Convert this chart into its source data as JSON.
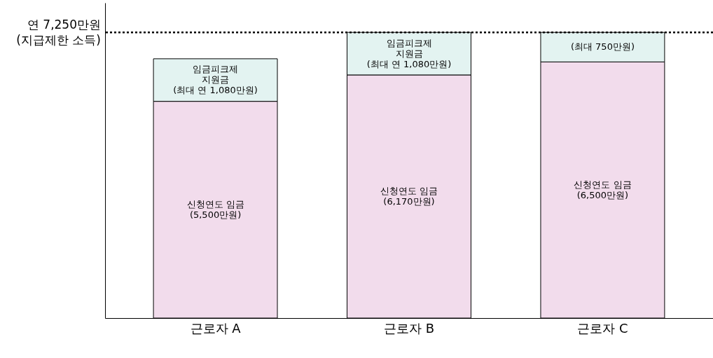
{
  "chart_data": {
    "type": "bar",
    "stacked": true,
    "categories": [
      "근로자 A",
      "근로자 B",
      "근로자 C"
    ],
    "ylim": [
      0,
      8000
    ],
    "tick_labels": "x",
    "series": [
      {
        "color": "#f2dcec",
        "values": [
          5500,
          6170,
          6500
        ],
        "value_labels": [
          "신청연도 임금\n(5,500만원)",
          "신청연도 임금\n(6,170만원)",
          "신청연도 임금\n(6,500만원)"
        ]
      },
      {
        "color": "#e3f3f1",
        "values": [
          1080,
          1080,
          750
        ],
        "value_labels": [
          "임금피크제\n지원금\n(최대 연 1,080만원)",
          "임금피크제\n지원금\n(최대 연 1,080만원)",
          "(최대 750만원)"
        ]
      }
    ],
    "ref_lines": [
      {
        "axis": "y",
        "value": 7250,
        "label": "연 7,250만원\n(지급제한 소득)",
        "line_style": "dotted"
      }
    ]
  }
}
